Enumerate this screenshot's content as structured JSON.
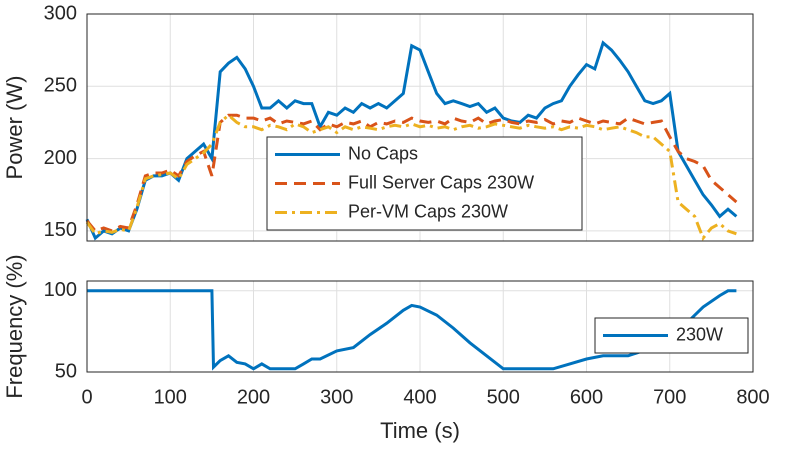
{
  "chart_data": [
    {
      "type": "line",
      "ylabel": "Power (W)",
      "x": [
        0,
        10,
        20,
        30,
        40,
        50,
        60,
        70,
        80,
        90,
        100,
        110,
        120,
        130,
        140,
        150,
        160,
        170,
        180,
        190,
        200,
        210,
        220,
        230,
        240,
        250,
        260,
        270,
        280,
        290,
        300,
        310,
        320,
        330,
        340,
        350,
        360,
        370,
        380,
        390,
        400,
        410,
        420,
        430,
        440,
        450,
        460,
        470,
        480,
        490,
        500,
        510,
        520,
        530,
        540,
        550,
        560,
        570,
        580,
        590,
        600,
        610,
        620,
        630,
        640,
        650,
        660,
        670,
        680,
        690,
        700,
        710,
        720,
        730,
        740,
        750,
        760,
        770,
        780
      ],
      "series": [
        {
          "name": "No Caps",
          "color": "#0072BD",
          "linestyle": "solid",
          "values": [
            158,
            145,
            150,
            148,
            152,
            150,
            165,
            185,
            188,
            188,
            190,
            185,
            200,
            205,
            210,
            200,
            260,
            266,
            270,
            262,
            250,
            235,
            235,
            240,
            235,
            240,
            238,
            238,
            222,
            232,
            230,
            235,
            232,
            238,
            235,
            238,
            235,
            240,
            245,
            278,
            275,
            260,
            245,
            238,
            240,
            238,
            236,
            238,
            232,
            235,
            228,
            226,
            225,
            230,
            228,
            235,
            238,
            240,
            250,
            258,
            265,
            262,
            280,
            275,
            268,
            260,
            250,
            240,
            238,
            240,
            245,
            205,
            195,
            185,
            175,
            168,
            160,
            165,
            160
          ]
        },
        {
          "name": "Full Server Caps 230W",
          "color": "#D95319",
          "linestyle": "dashed",
          "values": [
            157,
            150,
            152,
            150,
            153,
            152,
            168,
            188,
            190,
            190,
            192,
            188,
            198,
            202,
            205,
            188,
            225,
            230,
            230,
            228,
            228,
            226,
            228,
            224,
            226,
            225,
            224,
            226,
            220,
            224,
            222,
            225,
            224,
            226,
            222,
            225,
            224,
            226,
            225,
            228,
            226,
            225,
            226,
            224,
            228,
            226,
            225,
            228,
            224,
            226,
            227,
            225,
            224,
            226,
            225,
            227,
            224,
            226,
            225,
            228,
            226,
            224,
            226,
            225,
            224,
            228,
            226,
            224,
            225,
            226,
            215,
            205,
            200,
            198,
            195,
            185,
            180,
            175,
            170
          ]
        },
        {
          "name": "Per-VM Caps 230W",
          "color": "#EDB120",
          "linestyle": "dashdot",
          "values": [
            156,
            148,
            150,
            149,
            151,
            150,
            166,
            186,
            188,
            189,
            190,
            186,
            196,
            200,
            204,
            210,
            225,
            230,
            225,
            222,
            222,
            220,
            223,
            222,
            220,
            224,
            222,
            218,
            220,
            222,
            218,
            222,
            220,
            222,
            221,
            220,
            222,
            223,
            222,
            224,
            222,
            223,
            221,
            222,
            220,
            222,
            223,
            221,
            222,
            224,
            223,
            222,
            221,
            223,
            222,
            221,
            222,
            220,
            222,
            221,
            223,
            222,
            220,
            221,
            222,
            220,
            218,
            215,
            215,
            210,
            205,
            170,
            165,
            160,
            145,
            152,
            155,
            150,
            148
          ]
        }
      ],
      "xlim": [
        0,
        800
      ],
      "xticks": [
        0,
        100,
        200,
        300,
        400,
        500,
        600,
        700,
        800
      ],
      "ylim": [
        143,
        300
      ],
      "yticks": [
        150,
        200,
        250,
        300
      ],
      "grid": true,
      "legend": "south"
    },
    {
      "type": "line",
      "ylabel": "Frequency (%)",
      "xlabel": "Time (s)",
      "x": [
        0,
        150,
        152,
        160,
        170,
        180,
        190,
        200,
        210,
        220,
        250,
        260,
        270,
        280,
        300,
        320,
        340,
        360,
        380,
        390,
        400,
        420,
        440,
        460,
        480,
        500,
        560,
        580,
        600,
        620,
        650,
        680,
        700,
        720,
        740,
        760,
        770,
        780
      ],
      "series": [
        {
          "name": "230W",
          "color": "#0072BD",
          "linestyle": "solid",
          "values": [
            100,
            100,
            53,
            57,
            60,
            56,
            55,
            52,
            55,
            52,
            52,
            55,
            58,
            58,
            63,
            65,
            73,
            80,
            88,
            91,
            90,
            85,
            77,
            68,
            60,
            52,
            52,
            55,
            58,
            60,
            60,
            65,
            75,
            80,
            90,
            97,
            100,
            100
          ]
        }
      ],
      "xlim": [
        0,
        800
      ],
      "xticks": [
        0,
        100,
        200,
        300,
        400,
        500,
        600,
        700,
        800
      ],
      "ylim": [
        50,
        106
      ],
      "yticks": [
        50,
        100
      ],
      "grid": true,
      "legend": "east"
    }
  ]
}
